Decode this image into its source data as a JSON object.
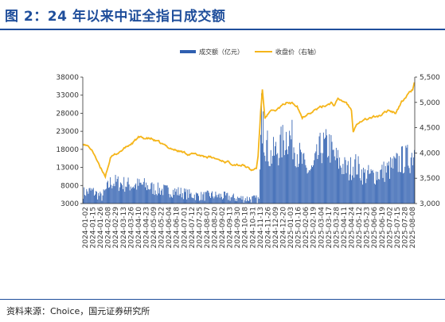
{
  "header": {
    "title": "图 2：24 年以来中证全指日成交额"
  },
  "footer": {
    "source": "资料来源：Choice，国元证券研究所"
  },
  "chart_data": {
    "type": "bar+line",
    "legend": [
      "成交额（亿元）",
      "收盘价（右轴）"
    ],
    "legend_position": "top-center",
    "colors": {
      "bar": "#2f5fb0",
      "line": "#f5b51a",
      "axis": "#333333"
    },
    "y_left": {
      "min": 3000,
      "max": 38000,
      "ticks": [
        3000,
        8000,
        13000,
        18000,
        23000,
        28000,
        33000,
        38000
      ]
    },
    "y_right": {
      "min": 3000,
      "max": 5500,
      "ticks": [
        "3,000",
        "3,500",
        "4,000",
        "4,500",
        "5,000",
        "5,500"
      ]
    },
    "x_ticks": [
      "2024-01-02",
      "2024-01-15",
      "2024-01-26",
      "2024-02-08",
      "2024-02-29",
      "2024-03-13",
      "2024-03-26",
      "2024-04-10",
      "2024-04-23",
      "2024-05-09",
      "2024-05-22",
      "2024-06-04",
      "2024-06-18",
      "2024-07-01",
      "2024-07-12",
      "2024-07-25",
      "2024-08-07",
      "2024-08-20",
      "2024-09-02",
      "2024-09-13",
      "2024-09-30",
      "2024-10-18",
      "2024-10-31",
      "2024-11-13",
      "2024-11-26",
      "2024-12-09",
      "2024-12-20",
      "2025-01-03",
      "2025-01-16",
      "2025-02-06",
      "2025-02-19",
      "2025-03-04",
      "2025-03-17",
      "2025-03-28",
      "2025-04-11",
      "2025-04-24",
      "2025-05-12",
      "2025-05-23",
      "2025-06-06",
      "2025-06-19",
      "2025-07-02",
      "2025-07-15",
      "2025-07-28",
      "2025-08-08"
    ],
    "turnover_profile": [
      [
        0,
        6000
      ],
      [
        10,
        6500
      ],
      [
        22,
        4800
      ],
      [
        28,
        7200
      ],
      [
        33,
        9000
      ],
      [
        45,
        8500
      ],
      [
        60,
        8000
      ],
      [
        70,
        8200
      ],
      [
        85,
        7000
      ],
      [
        100,
        6500
      ],
      [
        110,
        6300
      ],
      [
        125,
        5500
      ],
      [
        140,
        5000
      ],
      [
        150,
        5300
      ],
      [
        165,
        5000
      ],
      [
        180,
        4500
      ],
      [
        200,
        4300
      ],
      [
        207,
        4100
      ],
      [
        209,
        18000
      ],
      [
        210,
        26000
      ],
      [
        213,
        22000
      ],
      [
        220,
        16000
      ],
      [
        230,
        18000
      ],
      [
        240,
        22000
      ],
      [
        245,
        21000
      ],
      [
        255,
        16000
      ],
      [
        262,
        12500
      ],
      [
        270,
        12000
      ],
      [
        280,
        18500
      ],
      [
        290,
        19000
      ],
      [
        295,
        16000
      ],
      [
        305,
        13500
      ],
      [
        313,
        12000
      ],
      [
        318,
        14000
      ],
      [
        322,
        13500
      ],
      [
        330,
        11000
      ],
      [
        340,
        10800
      ],
      [
        350,
        11500
      ],
      [
        360,
        12500
      ],
      [
        370,
        14000
      ],
      [
        375,
        15000
      ],
      [
        385,
        15500
      ],
      [
        390,
        18000
      ]
    ],
    "close_profile": [
      [
        0,
        4200
      ],
      [
        8,
        4100
      ],
      [
        14,
        3950
      ],
      [
        20,
        3700
      ],
      [
        26,
        3550
      ],
      [
        32,
        3900
      ],
      [
        45,
        4050
      ],
      [
        58,
        4200
      ],
      [
        65,
        4300
      ],
      [
        80,
        4280
      ],
      [
        95,
        4150
      ],
      [
        110,
        4050
      ],
      [
        125,
        3980
      ],
      [
        140,
        3950
      ],
      [
        155,
        3890
      ],
      [
        175,
        3800
      ],
      [
        190,
        3750
      ],
      [
        198,
        3650
      ],
      [
        204,
        3700
      ],
      [
        206,
        3950
      ],
      [
        209,
        4800
      ],
      [
        211,
        5250
      ],
      [
        214,
        4700
      ],
      [
        220,
        4800
      ],
      [
        228,
        4850
      ],
      [
        240,
        5000
      ],
      [
        252,
        4950
      ],
      [
        258,
        4700
      ],
      [
        265,
        4800
      ],
      [
        272,
        4850
      ],
      [
        280,
        4900
      ],
      [
        292,
        5000
      ],
      [
        296,
        4950
      ],
      [
        300,
        5050
      ],
      [
        310,
        5000
      ],
      [
        316,
        4850
      ],
      [
        318,
        4450
      ],
      [
        322,
        4600
      ],
      [
        330,
        4650
      ],
      [
        340,
        4700
      ],
      [
        352,
        4750
      ],
      [
        360,
        4850
      ],
      [
        368,
        4800
      ],
      [
        375,
        5000
      ],
      [
        382,
        5150
      ],
      [
        388,
        5250
      ],
      [
        390,
        5400
      ]
    ]
  }
}
